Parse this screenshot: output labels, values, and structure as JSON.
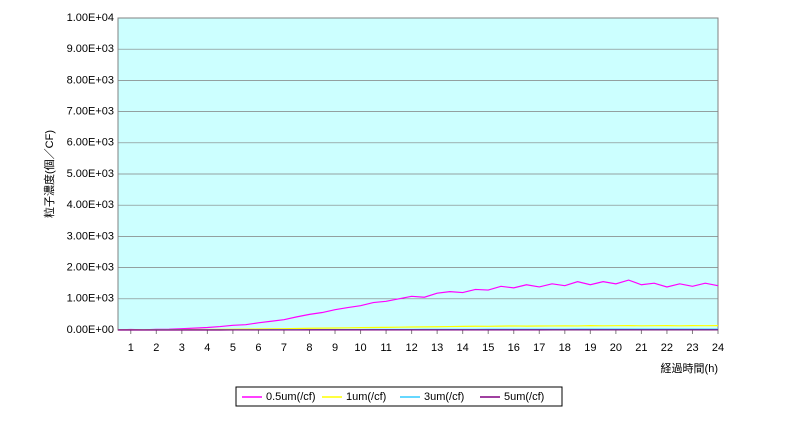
{
  "chart_data": {
    "type": "line",
    "y_label": "粒子濃度(個／CF)",
    "x_label": "経過時間(h)",
    "x": [
      0.5,
      1,
      1.5,
      2,
      2.5,
      3,
      3.5,
      4,
      4.5,
      5,
      5.5,
      6,
      6.5,
      7,
      7.5,
      8,
      8.5,
      9,
      9.5,
      10,
      10.5,
      11,
      11.5,
      12,
      12.5,
      13,
      13.5,
      14,
      14.5,
      15,
      15.5,
      16,
      16.5,
      17,
      17.5,
      18,
      18.5,
      19,
      19.5,
      20,
      20.5,
      21,
      21.5,
      22,
      22.5,
      23,
      23.5,
      24
    ],
    "xlim": [
      0.5,
      24
    ],
    "xticks": [
      1,
      2,
      3,
      4,
      5,
      6,
      7,
      8,
      9,
      10,
      11,
      12,
      13,
      14,
      15,
      16,
      17,
      18,
      19,
      20,
      21,
      22,
      23,
      24
    ],
    "ylim": [
      0,
      10000
    ],
    "yticks": [
      {
        "value": 0,
        "label": "0.00E+00"
      },
      {
        "value": 1000,
        "label": "1.00E+03"
      },
      {
        "value": 2000,
        "label": "2.00E+03"
      },
      {
        "value": 3000,
        "label": "3.00E+03"
      },
      {
        "value": 4000,
        "label": "4.00E+03"
      },
      {
        "value": 5000,
        "label": "5.00E+03"
      },
      {
        "value": 6000,
        "label": "6.00E+03"
      },
      {
        "value": 7000,
        "label": "7.00E+03"
      },
      {
        "value": 8000,
        "label": "8.00E+03"
      },
      {
        "value": 9000,
        "label": "9.00E+03"
      },
      {
        "value": 10000,
        "label": "1.00E+04"
      }
    ],
    "grid": true,
    "legend": "bottom",
    "series": [
      {
        "name": "0.5um(/cf)",
        "color": "#ff00ff",
        "values": [
          10,
          15,
          5,
          20,
          25,
          40,
          60,
          80,
          110,
          150,
          170,
          230,
          280,
          330,
          420,
          500,
          560,
          650,
          720,
          780,
          880,
          920,
          1000,
          1080,
          1050,
          1180,
          1230,
          1200,
          1300,
          1280,
          1400,
          1350,
          1450,
          1380,
          1480,
          1420,
          1550,
          1450,
          1550,
          1480,
          1600,
          1450,
          1500,
          1380,
          1480,
          1400,
          1500,
          1420
        ]
      },
      {
        "name": "1um(/cf)",
        "color": "#ffff00",
        "values": [
          5,
          5,
          5,
          8,
          10,
          12,
          15,
          18,
          20,
          25,
          28,
          32,
          38,
          42,
          48,
          55,
          60,
          65,
          70,
          75,
          80,
          85,
          90,
          95,
          100,
          105,
          110,
          115,
          120,
          118,
          125,
          130,
          125,
          128,
          130,
          135,
          130,
          140,
          135,
          138,
          140,
          135,
          138,
          140,
          135,
          140,
          138,
          140
        ]
      },
      {
        "name": "3um(/cf)",
        "color": "#33ccff",
        "values": [
          2,
          2,
          2,
          3,
          3,
          3,
          4,
          4,
          5,
          5,
          6,
          6,
          7,
          8,
          9,
          10,
          11,
          12,
          13,
          14,
          15,
          16,
          17,
          18,
          19,
          20,
          21,
          22,
          22,
          23,
          24,
          24,
          25,
          25,
          26,
          26,
          27,
          27,
          28,
          28,
          28,
          29,
          29,
          30,
          30,
          30,
          30,
          30
        ]
      },
      {
        "name": "5um(/cf)",
        "color": "#800080",
        "values": [
          1,
          1,
          1,
          1,
          1,
          1,
          1,
          1,
          1,
          2,
          2,
          2,
          2,
          2,
          2,
          3,
          3,
          3,
          3,
          3,
          4,
          4,
          4,
          4,
          4,
          4,
          5,
          5,
          5,
          5,
          5,
          5,
          5,
          5,
          6,
          6,
          6,
          6,
          6,
          6,
          6,
          6,
          6,
          6,
          6,
          6,
          6,
          6
        ]
      }
    ]
  }
}
